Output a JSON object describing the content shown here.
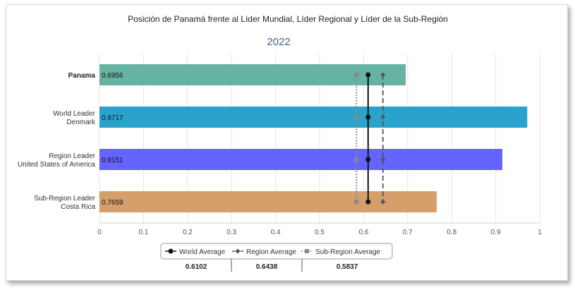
{
  "chart_data": {
    "type": "bar",
    "orientation": "horizontal",
    "title": "Posición de Panamá frente al Líder Mundial, Líder Regional y Líder de la Sub-Región",
    "subtitle": "2022",
    "categories": [
      {
        "lines": [
          "Panama"
        ],
        "value": 0.6956,
        "label": "0.6956",
        "color": "#66b3a1"
      },
      {
        "lines": [
          "World Leader",
          "Denmark"
        ],
        "value": 0.9717,
        "label": "0.9717",
        "color": "#2aa3cc"
      },
      {
        "lines": [
          "Region Leader",
          "United States of America"
        ],
        "value": 0.9151,
        "label": "0.9151",
        "color": "#6464ff"
      },
      {
        "lines": [
          "Sub-Region Leader",
          "Costa Rica"
        ],
        "value": 0.7659,
        "label": "0.7659",
        "color": "#d49f6b"
      }
    ],
    "xlim": [
      0,
      1
    ],
    "xticks": [
      "0",
      "0.1",
      "0.2",
      "0.3",
      "0.4",
      "0.5",
      "0.6",
      "0.7",
      "0.8",
      "0.9",
      "1"
    ],
    "grid": true,
    "reference_lines": [
      {
        "name": "World Average",
        "value": 0.6102,
        "label": "0.6102",
        "color": "#111111",
        "style": "solid",
        "marker": "circle"
      },
      {
        "name": "Region Average",
        "value": 0.6438,
        "label": "0.6438",
        "color": "#555555",
        "style": "dashed",
        "marker": "diamond"
      },
      {
        "name": "Sub-Region Average",
        "value": 0.5837,
        "label": "0.5837",
        "color": "#888888",
        "style": "dotted",
        "marker": "square"
      }
    ],
    "legend_position": "bottom-center"
  }
}
